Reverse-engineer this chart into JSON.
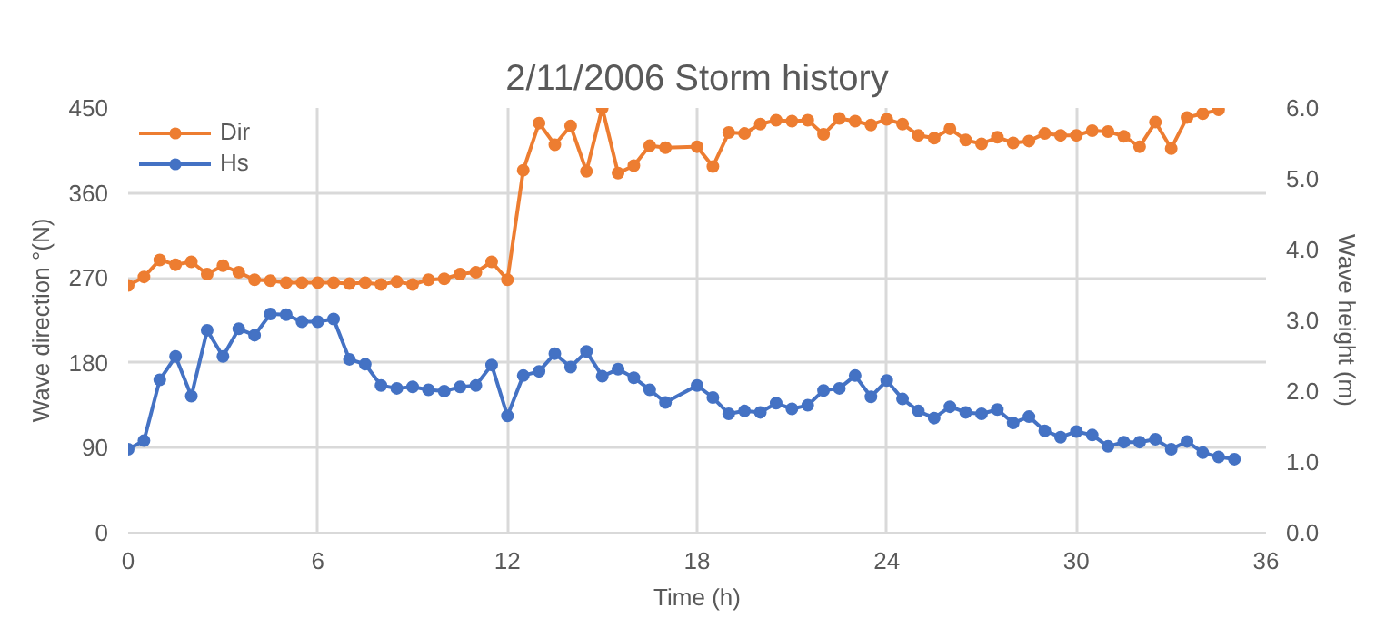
{
  "chart_data": {
    "type": "line",
    "title": "2/11/2006 Storm history",
    "xlabel": "Time (h)",
    "ylabel": "Wave direction °(N)",
    "y2label": "Wave height (m)",
    "xlim": [
      0,
      36
    ],
    "xticks": [
      0,
      6,
      12,
      18,
      24,
      30,
      36
    ],
    "ylim": [
      0,
      450
    ],
    "yticks": [
      0,
      90,
      180,
      270,
      360,
      450
    ],
    "y2lim": [
      0,
      6
    ],
    "y2ticks": [
      {
        "value": 0,
        "label": "0.0"
      },
      {
        "value": 1,
        "label": "1.0"
      },
      {
        "value": 2,
        "label": "2.0"
      },
      {
        "value": 3,
        "label": "3.0"
      },
      {
        "value": 4,
        "label": "4.0"
      },
      {
        "value": 5,
        "label": "5.0"
      },
      {
        "value": 6,
        "label": "6.0"
      }
    ],
    "grid": true,
    "legend": "top left",
    "marker": "circle",
    "line_style": "solid",
    "series": [
      {
        "name": "Dir",
        "color": "#ed7d31",
        "x": [
          0,
          0.5,
          1,
          1.5,
          2,
          2.5,
          3,
          3.5,
          4,
          4.5,
          5,
          5.5,
          6,
          6.5,
          7,
          7.5,
          8,
          8.5,
          9,
          9.5,
          10,
          10.5,
          11,
          11.5,
          12,
          12.5,
          13,
          13.5,
          14,
          14.5,
          15,
          15.5,
          16,
          16.5,
          17,
          18,
          18.5,
          19,
          19.5,
          20,
          20.5,
          21,
          21.5,
          22,
          22.5,
          23,
          23.5,
          24,
          24.5,
          25,
          25.5,
          26,
          26.5,
          27,
          27.5,
          28,
          28.5,
          29,
          29.5,
          30,
          30.5,
          31,
          31.5,
          32,
          32.5,
          33,
          33.5,
          34,
          34.5
        ],
        "values": [
          262,
          271,
          289,
          284,
          287,
          274,
          283,
          276,
          268,
          267,
          265,
          265,
          265,
          265,
          264,
          265,
          263,
          266,
          263,
          268,
          269,
          274,
          276,
          287,
          268,
          384,
          434,
          411,
          431,
          383,
          450,
          381,
          389,
          410,
          408,
          409,
          388,
          424,
          423,
          433,
          437,
          436,
          437,
          422,
          439,
          436,
          432,
          438,
          433,
          421,
          418,
          428,
          416,
          412,
          419,
          413,
          415,
          423,
          421,
          421,
          426,
          425,
          420,
          409,
          435,
          407,
          440,
          444,
          448
        ]
      },
      {
        "name": "Hs",
        "color": "#4472c4",
        "axis": "y2",
        "x": [
          0,
          0.5,
          1,
          1.5,
          2,
          2.5,
          3,
          3.5,
          4,
          4.5,
          5,
          5.5,
          6,
          6.5,
          7,
          7.5,
          8,
          8.5,
          9,
          9.5,
          10,
          10.5,
          11,
          11.5,
          12,
          12.5,
          13,
          13.5,
          14,
          14.5,
          15,
          15.5,
          16,
          16.5,
          17,
          18,
          18.5,
          19,
          19.5,
          20,
          20.5,
          21,
          21.5,
          22,
          22.5,
          23,
          23.5,
          24,
          24.5,
          25,
          25.5,
          26,
          26.5,
          27,
          27.5,
          28,
          28.5,
          29,
          29.5,
          30,
          30.5,
          31,
          31.5,
          32,
          32.5,
          33,
          33.5,
          34,
          34.5,
          35
        ],
        "values": [
          1.18,
          1.3,
          2.16,
          2.49,
          1.93,
          2.86,
          2.49,
          2.88,
          2.79,
          3.09,
          3.08,
          2.98,
          2.98,
          3.02,
          2.45,
          2.38,
          2.08,
          2.04,
          2.06,
          2.02,
          2.0,
          2.06,
          2.08,
          2.37,
          1.65,
          2.22,
          2.28,
          2.53,
          2.34,
          2.56,
          2.21,
          2.31,
          2.19,
          2.02,
          1.84,
          2.08,
          1.91,
          1.68,
          1.72,
          1.7,
          1.83,
          1.75,
          1.8,
          2.01,
          2.04,
          2.22,
          1.92,
          2.15,
          1.89,
          1.72,
          1.62,
          1.78,
          1.7,
          1.68,
          1.74,
          1.55,
          1.64,
          1.44,
          1.35,
          1.43,
          1.38,
          1.22,
          1.28,
          1.28,
          1.32,
          1.18,
          1.29,
          1.13,
          1.07,
          1.04
        ]
      }
    ]
  }
}
